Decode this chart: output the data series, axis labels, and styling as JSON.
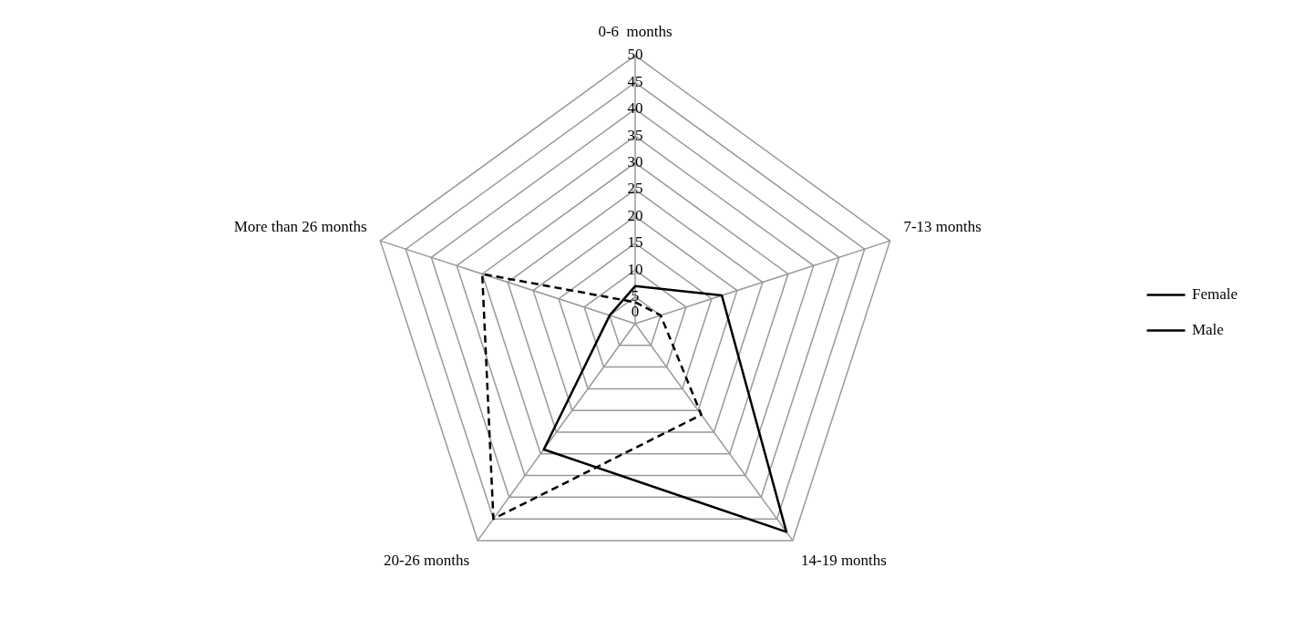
{
  "chart_data": {
    "type": "radar",
    "categories": [
      "0-6  months",
      "7-13 months",
      "14-19 months",
      "20-26 months",
      "More than 26 months"
    ],
    "series": [
      {
        "name": "Female",
        "color": "#000000",
        "line_style": "solid",
        "values": [
          7,
          17,
          48,
          29,
          5
        ]
      },
      {
        "name": "Male",
        "color": "#000000",
        "line_style": "dashed",
        "values": [
          4,
          5,
          21,
          45,
          30
        ]
      }
    ],
    "ylim": [
      0,
      50
    ],
    "yticks": [
      0,
      5,
      10,
      15,
      20,
      25,
      30,
      35,
      40,
      45,
      50
    ],
    "grid": true,
    "legend": "right",
    "marker": "none"
  }
}
